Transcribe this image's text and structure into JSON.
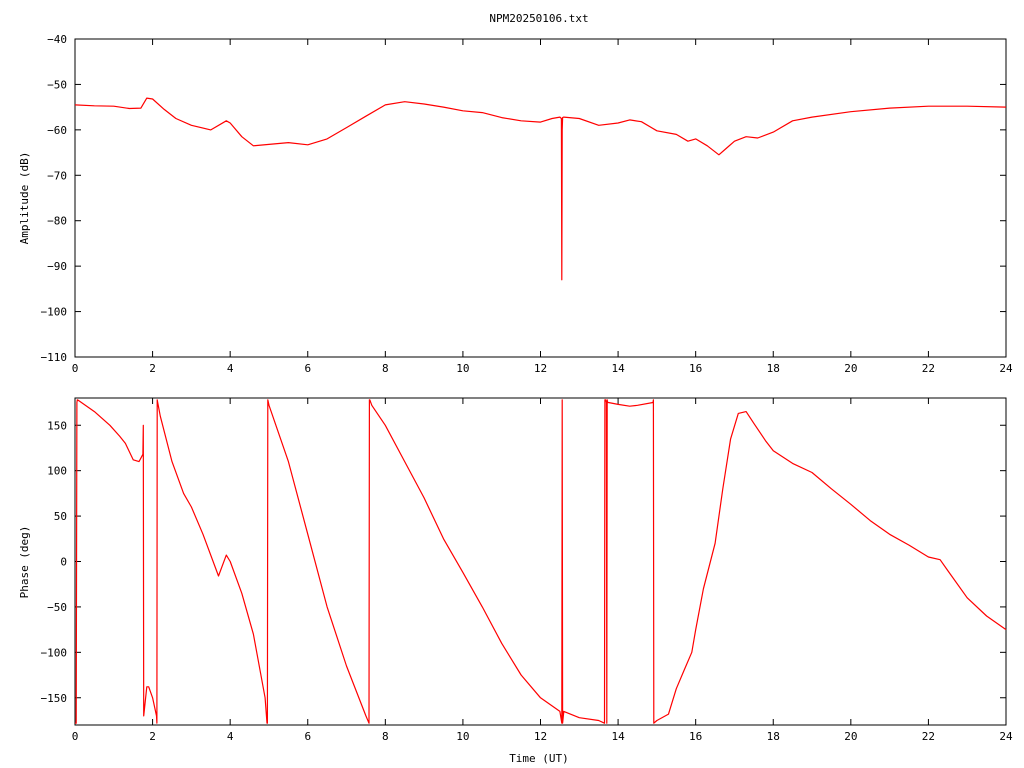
{
  "title": "NPM20250106.txt",
  "chart_data": [
    {
      "type": "line",
      "ylabel": "Amplitude (dB)",
      "xlabel": "",
      "xlim": [
        0,
        24
      ],
      "ylim": [
        -110,
        -40
      ],
      "xticks": [
        0,
        2,
        4,
        6,
        8,
        10,
        12,
        14,
        16,
        18,
        20,
        22,
        24
      ],
      "yticks": [
        -40,
        -50,
        -60,
        -70,
        -80,
        -90,
        -100,
        -110
      ],
      "grid": false,
      "legend": "none",
      "color": "#ff0000",
      "series": [
        {
          "x": [
            0,
            0.5,
            1,
            1.4,
            1.7,
            1.85,
            2.0,
            2.3,
            2.6,
            3.0,
            3.5,
            3.9,
            4.0,
            4.3,
            4.6,
            5.0,
            5.5,
            6.0,
            6.5,
            7.0,
            7.5,
            8.0,
            8.5,
            9.0,
            9.5,
            10.0,
            10.5,
            11.0,
            11.5,
            12.0,
            12.3,
            12.5,
            12.54,
            12.55,
            12.56,
            12.57,
            12.6,
            13.0,
            13.5,
            14.0,
            14.3,
            14.6,
            15.0,
            15.5,
            15.8,
            16.0,
            16.3,
            16.6,
            16.8,
            17.0,
            17.3,
            17.6,
            18.0,
            18.5,
            19.0,
            20.0,
            21.0,
            22.0,
            23.0,
            24.0
          ],
          "y": [
            -54.5,
            -54.7,
            -54.8,
            -55.3,
            -55.2,
            -53.0,
            -53.2,
            -55.5,
            -57.5,
            -59.0,
            -60.0,
            -58.0,
            -58.5,
            -61.5,
            -63.5,
            -63.2,
            -62.8,
            -63.3,
            -62.0,
            -59.5,
            -57.0,
            -54.5,
            -53.8,
            -54.3,
            -55.0,
            -55.8,
            -56.2,
            -57.3,
            -58.0,
            -58.3,
            -57.5,
            -57.2,
            -57.5,
            -93.0,
            -60.0,
            -57.3,
            -57.2,
            -57.5,
            -59.0,
            -58.5,
            -57.8,
            -58.2,
            -60.2,
            -61.0,
            -62.5,
            -62.0,
            -63.5,
            -65.5,
            -64.0,
            -62.5,
            -61.5,
            -61.8,
            -60.5,
            -58.0,
            -57.2,
            -56.0,
            -55.2,
            -54.8,
            -54.8,
            -55.0
          ]
        }
      ]
    },
    {
      "type": "line",
      "ylabel": "Phase (deg)",
      "xlabel": "Time (UT)",
      "xlim": [
        0,
        24
      ],
      "ylim": [
        -180,
        180
      ],
      "xticks": [
        0,
        2,
        4,
        6,
        8,
        10,
        12,
        14,
        16,
        18,
        20,
        22,
        24
      ],
      "yticks": [
        150,
        100,
        50,
        0,
        -50,
        -100,
        -150
      ],
      "grid": false,
      "legend": "none",
      "color": "#ff0000",
      "series": [
        {
          "x": [
            0,
            0.03,
            0.05,
            0.06,
            0.1,
            0.5,
            0.9,
            1.15,
            1.3,
            1.5,
            1.65,
            1.75,
            1.76,
            1.77,
            1.85,
            1.9,
            2.0,
            2.1,
            2.11,
            2.12,
            2.2,
            2.5,
            2.8,
            3.0,
            3.3,
            3.7,
            3.9,
            4.0,
            4.3,
            4.6,
            4.9,
            4.95,
            4.96,
            4.97,
            5.0,
            5.5,
            6.0,
            6.5,
            7.0,
            7.5,
            7.58,
            7.59,
            7.6,
            7.65,
            8.0,
            8.5,
            9.0,
            9.5,
            10.0,
            10.5,
            11.0,
            11.5,
            12.0,
            12.5,
            12.55,
            12.56,
            12.57,
            12.6,
            13.0,
            13.5,
            13.65,
            13.66,
            13.67,
            13.68,
            13.7,
            13.71,
            13.72,
            13.73,
            13.75,
            14.0,
            14.3,
            14.5,
            14.9,
            14.91,
            14.92,
            15.0,
            15.3,
            15.5,
            15.7,
            15.9,
            16.0,
            16.2,
            16.5,
            16.7,
            16.9,
            17.1,
            17.3,
            17.5,
            17.8,
            18.0,
            18.5,
            19.0,
            19.5,
            20.0,
            20.5,
            21.0,
            21.5,
            22.0,
            22.3,
            22.5,
            23.0,
            23.5,
            24.0
          ],
          "y": [
            -178,
            -178,
            175,
            178,
            177,
            165,
            150,
            138,
            130,
            112,
            110,
            118,
            150,
            -170,
            -138,
            -138,
            -150,
            -170,
            -178,
            178,
            160,
            110,
            75,
            60,
            30,
            -16,
            7,
            0,
            -35,
            -80,
            -150,
            -178,
            -178,
            178,
            172,
            110,
            30,
            -50,
            -115,
            -170,
            -178,
            178,
            178,
            172,
            150,
            110,
            70,
            25,
            -12,
            -50,
            -90,
            -125,
            -150,
            -165,
            -178,
            178,
            -178,
            -165,
            -172,
            -175,
            -178,
            178,
            178,
            178,
            175,
            -178,
            178,
            175,
            175,
            173,
            171,
            172,
            175,
            178,
            -178,
            -175,
            -168,
            -140,
            -120,
            -100,
            -75,
            -30,
            20,
            80,
            135,
            163,
            165,
            152,
            133,
            122,
            108,
            98,
            80,
            63,
            45,
            30,
            18,
            5,
            2,
            -10,
            -40,
            -60,
            -75
          ]
        }
      ]
    }
  ]
}
